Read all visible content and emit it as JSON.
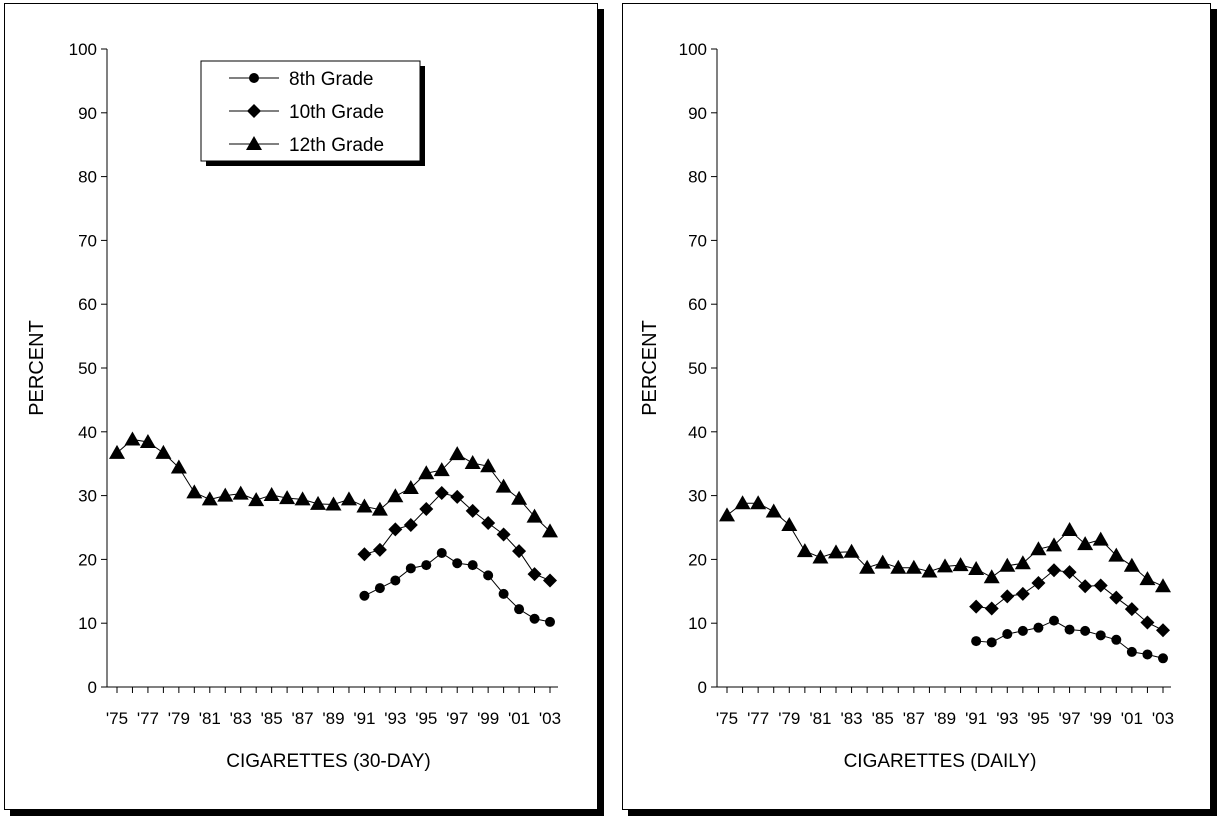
{
  "chart_data": [
    {
      "type": "line",
      "xlabel": "CIGARETTES (30-DAY)",
      "ylabel": "PERCENT",
      "ylim": [
        0,
        100
      ],
      "yticks": [
        0,
        10,
        20,
        30,
        40,
        50,
        60,
        70,
        80,
        90,
        100
      ],
      "x": [
        1975,
        1976,
        1977,
        1978,
        1979,
        1980,
        1981,
        1982,
        1983,
        1984,
        1985,
        1986,
        1987,
        1988,
        1989,
        1990,
        1991,
        1992,
        1993,
        1994,
        1995,
        1996,
        1997,
        1998,
        1999,
        2000,
        2001,
        2002,
        2003
      ],
      "xtick_labels": [
        "'75",
        "'77",
        "'79",
        "'81",
        "'83",
        "'85",
        "'87",
        "'89",
        "'91",
        "'93",
        "'95",
        "'97",
        "'99",
        "'01",
        "'03"
      ],
      "legend": {
        "position": "top-left",
        "entries": [
          "8th Grade",
          "10th Grade",
          "12th Grade"
        ]
      },
      "series": [
        {
          "name": "8th Grade",
          "marker": "circle",
          "x": [
            1991,
            1992,
            1993,
            1994,
            1995,
            1996,
            1997,
            1998,
            1999,
            2000,
            2001,
            2002,
            2003
          ],
          "values": [
            14.3,
            15.5,
            16.7,
            18.6,
            19.1,
            21.0,
            19.4,
            19.1,
            17.5,
            14.6,
            12.2,
            10.7,
            10.2
          ]
        },
        {
          "name": "10th Grade",
          "marker": "diamond",
          "x": [
            1991,
            1992,
            1993,
            1994,
            1995,
            1996,
            1997,
            1998,
            1999,
            2000,
            2001,
            2002,
            2003
          ],
          "values": [
            20.8,
            21.5,
            24.7,
            25.4,
            27.9,
            30.4,
            29.8,
            27.6,
            25.7,
            23.9,
            21.3,
            17.7,
            16.7
          ]
        },
        {
          "name": "12th Grade",
          "marker": "triangle",
          "x": [
            1975,
            1976,
            1977,
            1978,
            1979,
            1980,
            1981,
            1982,
            1983,
            1984,
            1985,
            1986,
            1987,
            1988,
            1989,
            1990,
            1991,
            1992,
            1993,
            1994,
            1995,
            1996,
            1997,
            1998,
            1999,
            2000,
            2001,
            2002,
            2003
          ],
          "values": [
            36.7,
            38.8,
            38.4,
            36.7,
            34.4,
            30.5,
            29.4,
            30.0,
            30.3,
            29.3,
            30.1,
            29.6,
            29.4,
            28.7,
            28.6,
            29.4,
            28.3,
            27.8,
            29.9,
            31.2,
            33.5,
            34.0,
            36.5,
            35.1,
            34.6,
            31.4,
            29.5,
            26.7,
            24.4
          ]
        }
      ]
    },
    {
      "type": "line",
      "xlabel": "CIGARETTES (DAILY)",
      "ylabel": "PERCENT",
      "ylim": [
        0,
        100
      ],
      "yticks": [
        0,
        10,
        20,
        30,
        40,
        50,
        60,
        70,
        80,
        90,
        100
      ],
      "x": [
        1975,
        1976,
        1977,
        1978,
        1979,
        1980,
        1981,
        1982,
        1983,
        1984,
        1985,
        1986,
        1987,
        1988,
        1989,
        1990,
        1991,
        1992,
        1993,
        1994,
        1995,
        1996,
        1997,
        1998,
        1999,
        2000,
        2001,
        2002,
        2003
      ],
      "xtick_labels": [
        "'75",
        "'77",
        "'79",
        "'81",
        "'83",
        "'85",
        "'87",
        "'89",
        "'91",
        "'93",
        "'95",
        "'97",
        "'99",
        "'01",
        "'03"
      ],
      "legend": null,
      "series": [
        {
          "name": "8th Grade",
          "marker": "circle",
          "x": [
            1991,
            1992,
            1993,
            1994,
            1995,
            1996,
            1997,
            1998,
            1999,
            2000,
            2001,
            2002,
            2003
          ],
          "values": [
            7.2,
            7.0,
            8.3,
            8.8,
            9.3,
            10.4,
            9.0,
            8.8,
            8.1,
            7.4,
            5.5,
            5.1,
            4.5
          ]
        },
        {
          "name": "10th Grade",
          "marker": "diamond",
          "x": [
            1991,
            1992,
            1993,
            1994,
            1995,
            1996,
            1997,
            1998,
            1999,
            2000,
            2001,
            2002,
            2003
          ],
          "values": [
            12.6,
            12.3,
            14.2,
            14.6,
            16.3,
            18.3,
            18.0,
            15.8,
            15.9,
            14.0,
            12.2,
            10.1,
            8.9
          ]
        },
        {
          "name": "12th Grade",
          "marker": "triangle",
          "x": [
            1975,
            1976,
            1977,
            1978,
            1979,
            1980,
            1981,
            1982,
            1983,
            1984,
            1985,
            1986,
            1987,
            1988,
            1989,
            1990,
            1991,
            1992,
            1993,
            1994,
            1995,
            1996,
            1997,
            1998,
            1999,
            2000,
            2001,
            2002,
            2003
          ],
          "values": [
            26.9,
            28.8,
            28.8,
            27.5,
            25.4,
            21.3,
            20.3,
            21.1,
            21.2,
            18.7,
            19.5,
            18.7,
            18.7,
            18.1,
            18.9,
            19.1,
            18.5,
            17.2,
            19.0,
            19.4,
            21.6,
            22.2,
            24.6,
            22.4,
            23.1,
            20.6,
            19.0,
            16.9,
            15.8
          ]
        }
      ]
    }
  ]
}
